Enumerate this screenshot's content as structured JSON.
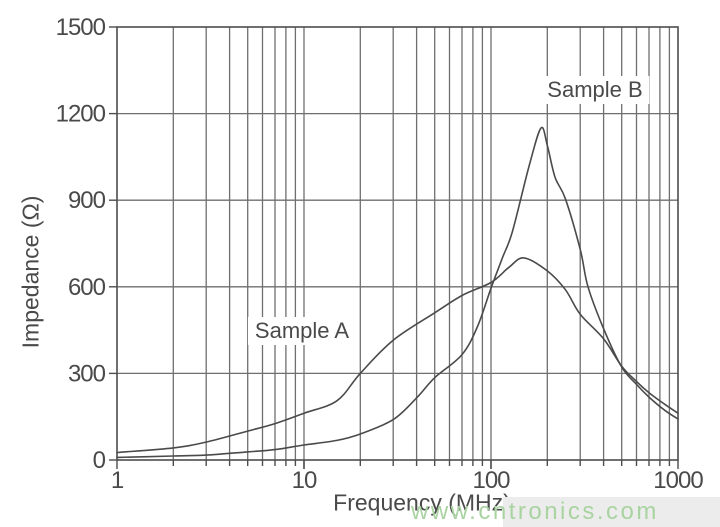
{
  "chart_data": {
    "type": "line",
    "title": "",
    "xlabel": "Frequency (MHz)",
    "ylabel": "Impedance (Ω)",
    "x_scale": "log",
    "xlim": [
      1,
      1000
    ],
    "ylim": [
      0,
      1500
    ],
    "x_ticks": [
      1,
      10,
      100,
      1000
    ],
    "y_ticks": [
      0,
      300,
      600,
      900,
      1200,
      1500
    ],
    "grid": true,
    "legend_position": "inline-annotations",
    "series": [
      {
        "name": "Sample A",
        "points": [
          [
            1,
            26
          ],
          [
            2,
            42
          ],
          [
            3,
            62
          ],
          [
            5,
            100
          ],
          [
            7,
            126
          ],
          [
            10,
            162
          ],
          [
            15,
            205
          ],
          [
            20,
            300
          ],
          [
            30,
            415
          ],
          [
            50,
            510
          ],
          [
            70,
            570
          ],
          [
            100,
            615
          ],
          [
            125,
            668
          ],
          [
            150,
            700
          ],
          [
            200,
            655
          ],
          [
            250,
            590
          ],
          [
            300,
            505
          ],
          [
            400,
            420
          ],
          [
            500,
            325
          ],
          [
            600,
            272
          ],
          [
            700,
            233
          ],
          [
            850,
            193
          ],
          [
            1000,
            162
          ]
        ]
      },
      {
        "name": "Sample B",
        "points": [
          [
            1,
            9
          ],
          [
            2,
            14
          ],
          [
            3,
            17
          ],
          [
            5,
            28
          ],
          [
            7,
            36
          ],
          [
            10,
            52
          ],
          [
            15,
            68
          ],
          [
            20,
            90
          ],
          [
            30,
            140
          ],
          [
            40,
            215
          ],
          [
            50,
            285
          ],
          [
            70,
            365
          ],
          [
            85,
            465
          ],
          [
            100,
            595
          ],
          [
            115,
            700
          ],
          [
            130,
            790
          ],
          [
            160,
            1020
          ],
          [
            185,
            1150
          ],
          [
            200,
            1090
          ],
          [
            220,
            980
          ],
          [
            250,
            905
          ],
          [
            300,
            730
          ],
          [
            330,
            600
          ],
          [
            400,
            455
          ],
          [
            500,
            322
          ],
          [
            600,
            262
          ],
          [
            700,
            218
          ],
          [
            850,
            172
          ],
          [
            1000,
            142
          ]
        ]
      }
    ]
  },
  "annotations": {
    "sample_a": "Sample A",
    "sample_b": "Sample B"
  },
  "watermark": {
    "text": "www.cntronics.com"
  },
  "colors": {
    "curve": "#4a4a4a",
    "grid": "#6f6f6f",
    "border": "#4d4d4d",
    "text": "#4a4a4a",
    "watermark_green": "#a9d3a1",
    "watermark_bg": "#ececec"
  }
}
